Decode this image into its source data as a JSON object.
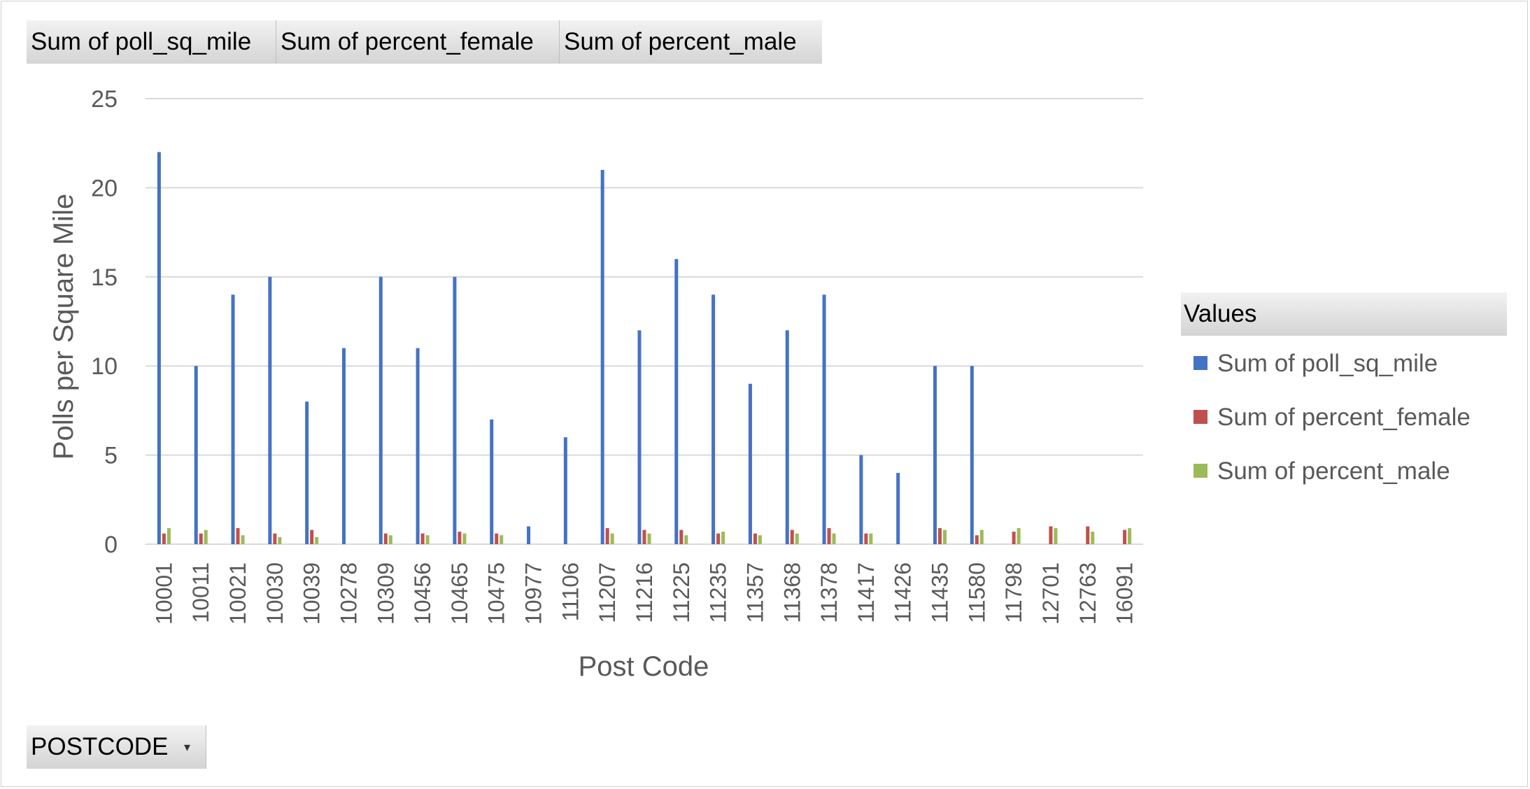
{
  "value_field_buttons": [
    "Sum of poll_sq_mile",
    "Sum of percent_female",
    "Sum of percent_male"
  ],
  "axis_field_button": {
    "label": "POSTCODE",
    "icon": "dropdown-arrow-icon"
  },
  "legend": {
    "title": "Values",
    "items": [
      {
        "label": "Sum of poll_sq_mile",
        "color": "#4472c4"
      },
      {
        "label": "Sum of percent_female",
        "color": "#c0504d"
      },
      {
        "label": "Sum of percent_male",
        "color": "#9bbb59"
      }
    ]
  },
  "chart_data": {
    "type": "bar",
    "xlabel": "Post Code",
    "ylabel": "Polls per Square Mile",
    "ylim": [
      0,
      25
    ],
    "yticks": [
      0,
      5,
      10,
      15,
      20,
      25
    ],
    "grid": true,
    "legend_position": "right",
    "categories": [
      "10001",
      "10011",
      "10021",
      "10030",
      "10039",
      "10278",
      "10309",
      "10456",
      "10465",
      "10475",
      "10977",
      "11106",
      "11207",
      "11216",
      "11225",
      "11235",
      "11357",
      "11368",
      "11378",
      "11417",
      "11426",
      "11435",
      "11580",
      "11798",
      "12701",
      "12763",
      "16091"
    ],
    "series": [
      {
        "name": "Sum of poll_sq_mile",
        "values": [
          22,
          10,
          14,
          15,
          8,
          11,
          15,
          11,
          15,
          7,
          1,
          6,
          21,
          12,
          16,
          14,
          9,
          12,
          14,
          5,
          4,
          10,
          10,
          0,
          0,
          0,
          0
        ]
      },
      {
        "name": "Sum of percent_female",
        "values": [
          0.6,
          0.6,
          0.9,
          0.6,
          0.8,
          0,
          0.6,
          0.6,
          0.7,
          0.6,
          0,
          0,
          0.9,
          0.8,
          0.8,
          0.6,
          0.6,
          0.8,
          0.9,
          0.6,
          0,
          0.9,
          0.5,
          0.7,
          1.0,
          1.0,
          0.8
        ]
      },
      {
        "name": "Sum of percent_male",
        "values": [
          0.9,
          0.8,
          0.5,
          0.4,
          0.4,
          0,
          0.5,
          0.5,
          0.6,
          0.5,
          0,
          0,
          0.6,
          0.6,
          0.5,
          0.7,
          0.5,
          0.6,
          0.6,
          0.6,
          0,
          0.8,
          0.8,
          0.9,
          0.9,
          0.7,
          0.9
        ]
      }
    ]
  }
}
